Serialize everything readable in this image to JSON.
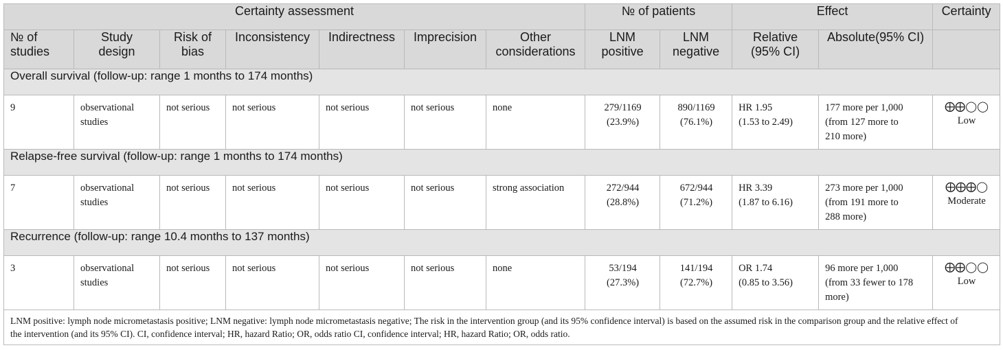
{
  "header": {
    "groups": {
      "certainty_assessment": "Certainty assessment",
      "patients": "№ of patients",
      "effect": "Effect",
      "certainty": "Certainty"
    },
    "columns": {
      "studies": [
        "№ of",
        "studies"
      ],
      "design": [
        "Study",
        "design"
      ],
      "bias": [
        "Risk of",
        "bias"
      ],
      "inconsistency": "Inconsistency",
      "indirectness": "Indirectness",
      "imprecision": "Imprecision",
      "other": [
        "Other",
        "considerations"
      ],
      "lnm_pos": [
        "LNM",
        "positive"
      ],
      "lnm_neg": [
        "LNM",
        "negative"
      ],
      "relative": [
        "Relative",
        "(95% CI)"
      ],
      "absolute": "Absolute(95% CI)"
    }
  },
  "sections": [
    {
      "title": "Overall survival (follow-up: range 1 months to 174 months)",
      "row": {
        "studies": "9",
        "design": [
          "observational",
          "studies"
        ],
        "bias": "not serious",
        "inconsistency": "not serious",
        "indirectness": "not serious",
        "imprecision": "not serious",
        "other": "none",
        "lnm_pos": [
          "279/1169",
          "(23.9%)"
        ],
        "lnm_neg": [
          "890/1169",
          "(76.1%)"
        ],
        "relative": [
          "HR 1.95",
          "(1.53 to 2.49)"
        ],
        "absolute": [
          "177 more per 1,000",
          "(from 127 more to",
          "210 more)"
        ],
        "certainty_symbol": "⨁⨁◯◯",
        "certainty_label": "Low"
      }
    },
    {
      "title": "Relapse-free survival (follow-up: range 1 months to 174 months)",
      "row": {
        "studies": "7",
        "design": [
          "observational",
          "studies"
        ],
        "bias": "not serious",
        "inconsistency": "not serious",
        "indirectness": "not serious",
        "imprecision": "not serious",
        "other": "strong association",
        "lnm_pos": [
          "272/944",
          "(28.8%)"
        ],
        "lnm_neg": [
          "672/944",
          "(71.2%)"
        ],
        "relative": [
          "HR 3.39",
          "(1.87 to 6.16)"
        ],
        "absolute": [
          "273 more per 1,000",
          "(from 191 more to",
          "288 more)"
        ],
        "certainty_symbol": "⨁⨁⨁◯",
        "certainty_label": "Moderate"
      }
    },
    {
      "title": "Recurrence (follow-up: range 10.4 months to 137 months)",
      "row": {
        "studies": "3",
        "design": [
          "observational",
          "studies"
        ],
        "bias": "not serious",
        "inconsistency": "not serious",
        "indirectness": "not serious",
        "imprecision": "not serious",
        "other": "none",
        "lnm_pos": [
          "53/194",
          "(27.3%)"
        ],
        "lnm_neg": [
          "141/194",
          "(72.7%)"
        ],
        "relative": [
          "OR 1.74",
          "(0.85 to 3.56)"
        ],
        "absolute": [
          "96 more per 1,000",
          "(from 33 fewer to 178",
          "more)"
        ],
        "certainty_symbol": "⨁⨁◯◯",
        "certainty_label": "Low"
      }
    }
  ],
  "footnote": [
    "LNM positive: lymph node micrometastasis positive; LNM negative: lymph node micrometastasis negative; The risk in the intervention group (and its 95% confidence interval) is based on the assumed risk in the comparison group and the relative effect of",
    "the intervention (and its 95% CI). CI, confidence interval; HR, hazard Ratio; OR, odds ratio CI, confidence interval; HR, hazard Ratio; OR, odds ratio."
  ]
}
